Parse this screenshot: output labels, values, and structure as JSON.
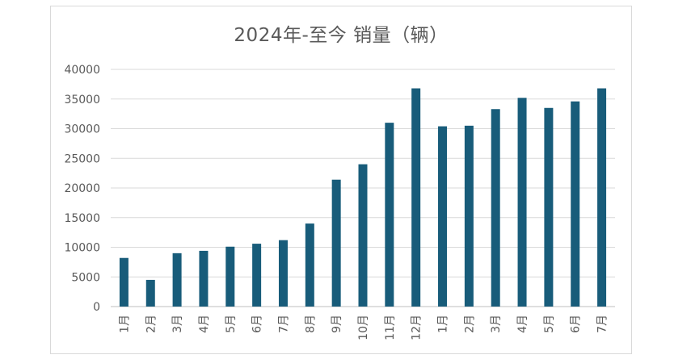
{
  "chart_data": {
    "type": "bar",
    "title": "2024年-至今 销量（辆）",
    "categories": [
      "1月",
      "2月",
      "3月",
      "4月",
      "5月",
      "6月",
      "7月",
      "8月",
      "9月",
      "10月",
      "11月",
      "12月",
      "1月",
      "2月",
      "3月",
      "4月",
      "5月",
      "6月",
      "7月"
    ],
    "values": [
      8200,
      4500,
      9000,
      9400,
      10100,
      10600,
      11200,
      14000,
      21400,
      24000,
      31000,
      36800,
      30400,
      30500,
      33300,
      35200,
      33500,
      34600,
      36800
    ],
    "ylim": [
      0,
      40000
    ],
    "yticks": [
      0,
      5000,
      10000,
      15000,
      20000,
      25000,
      30000,
      35000,
      40000
    ],
    "grid": true,
    "bar_color": "#185c7a",
    "grid_color": "#d9d9d9",
    "axis_color": "#bfbfbf",
    "xlabel": "",
    "ylabel": ""
  }
}
